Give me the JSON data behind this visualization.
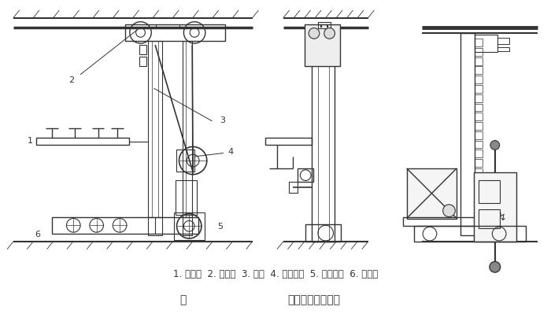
{
  "title_left": "图",
  "title_right": "巷道堆垛机的结构",
  "caption_line": "1. 载货台  2. 上横梁  3. 立柱  4. 起升机构  5. 运行机构  6. 下横梁",
  "bg_color": "#ffffff",
  "line_color": "#333333",
  "fig_width": 7.0,
  "fig_height": 4.14,
  "dpi": 100
}
